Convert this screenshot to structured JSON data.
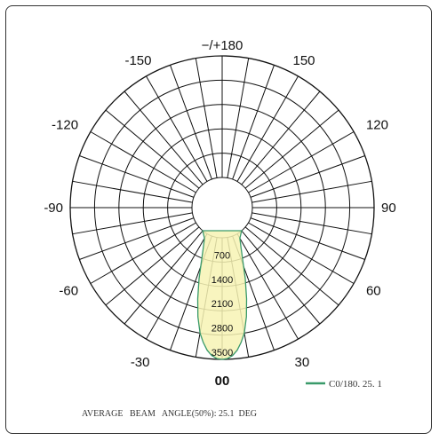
{
  "chart_data": {
    "type": "polar",
    "title": "",
    "angle_labels": [
      {
        "deg": 180,
        "text": "−/+180"
      },
      {
        "deg": 150,
        "text": "150"
      },
      {
        "deg": -150,
        "text": "-150"
      },
      {
        "deg": 120,
        "text": "120"
      },
      {
        "deg": -120,
        "text": "-120"
      },
      {
        "deg": 90,
        "text": "90"
      },
      {
        "deg": -90,
        "text": "-90"
      },
      {
        "deg": 60,
        "text": "60"
      },
      {
        "deg": -60,
        "text": "-60"
      },
      {
        "deg": 30,
        "text": "30"
      },
      {
        "deg": -30,
        "text": "-30"
      },
      {
        "deg": 0,
        "text": "00"
      }
    ],
    "radial_ticks": [
      700,
      1400,
      2100,
      2800,
      3500
    ],
    "rmax": 3500,
    "grid": true,
    "spoke_step_deg": 10,
    "series": [
      {
        "name": "C0/180. 25. 1",
        "color": "#3a9a6a",
        "fill": "#f7f3b4",
        "points": [
          {
            "a": 0,
            "r": 3500
          },
          {
            "a": 2,
            "r": 3480
          },
          {
            "a": 4,
            "r": 3400
          },
          {
            "a": 6,
            "r": 3260
          },
          {
            "a": 8,
            "r": 3050
          },
          {
            "a": 10,
            "r": 2800
          },
          {
            "a": 12.5,
            "r": 2350
          },
          {
            "a": 15,
            "r": 1850
          },
          {
            "a": 18,
            "r": 1280
          },
          {
            "a": 21,
            "r": 800
          },
          {
            "a": 25,
            "r": 420
          },
          {
            "a": 30,
            "r": 150
          },
          {
            "a": 40,
            "r": 0
          }
        ]
      }
    ],
    "legend_position": "bottom-right"
  },
  "footer": {
    "text": "AVERAGE   BEAM   ANGLE(50%): 25.1  DEG"
  }
}
